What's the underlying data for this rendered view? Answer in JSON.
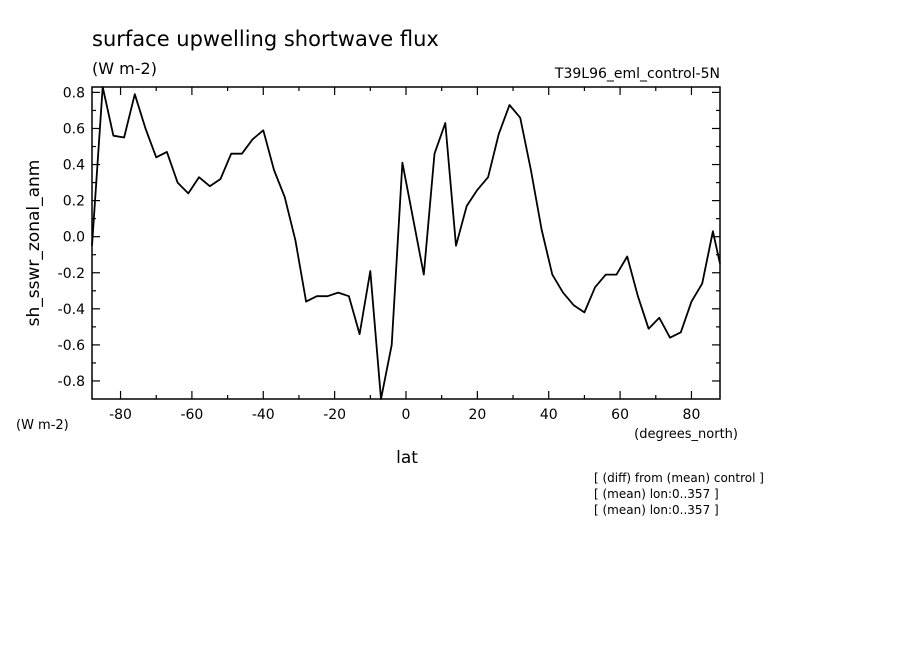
{
  "chart_data": {
    "type": "line",
    "title": "surface upwelling shortwave flux",
    "title_units": "(W m-2)",
    "run_label": "T39L96_eml_control-5N",
    "ylabel": "sh_sswr_zonal_anm",
    "ylabel_units": "(W m-2)",
    "xlabel": "lat",
    "xlabel_units": "(degrees_north)",
    "notes": [
      "[ (diff) from (mean) control ]",
      "[ (mean) lon:0..357 ]",
      "[ (mean) lon:0..357 ]"
    ],
    "xlim": [
      -88,
      88
    ],
    "ylim": [
      -0.9,
      0.83
    ],
    "xticks": [
      -80,
      -60,
      -40,
      -20,
      0,
      20,
      40,
      60,
      80
    ],
    "xtick_labels": [
      "-80",
      "-60",
      "-40",
      "-20",
      "0",
      "20",
      "40",
      "60",
      "80"
    ],
    "yticks": [
      0.8,
      0.6,
      0.4,
      0.2,
      0.0,
      -0.2,
      -0.4,
      -0.6,
      -0.8
    ],
    "ytick_labels": [
      "0.8",
      "0.6",
      "0.4",
      "0.2",
      "0.0",
      "-0.2",
      "-0.4",
      "-0.6",
      "-0.8"
    ],
    "grid": false,
    "line_color": "#000000",
    "series": [
      {
        "x": [
          -88,
          -85,
          -82,
          -79,
          -76,
          -73,
          -70,
          -67,
          -64,
          -61,
          -58,
          -55,
          -52,
          -49,
          -46,
          -43,
          -40,
          -37,
          -34,
          -31,
          -28,
          -25,
          -22,
          -19,
          -16,
          -13,
          -10,
          -7,
          -4,
          -1,
          2,
          5,
          8,
          11,
          14,
          17,
          20,
          23,
          26,
          29,
          32,
          35,
          38,
          41,
          44,
          47,
          50,
          53,
          56,
          59,
          62,
          65,
          68,
          71,
          74,
          77,
          80,
          83,
          86,
          88
        ],
        "y": [
          -0.05,
          0.83,
          0.56,
          0.55,
          0.79,
          0.6,
          0.44,
          0.47,
          0.3,
          0.24,
          0.33,
          0.28,
          0.32,
          0.46,
          0.46,
          0.54,
          0.59,
          0.37,
          0.22,
          -0.02,
          -0.36,
          -0.33,
          -0.33,
          -0.31,
          -0.33,
          -0.54,
          -0.19,
          -0.9,
          -0.6,
          0.41,
          0.1,
          -0.21,
          0.46,
          0.63,
          -0.05,
          0.17,
          0.26,
          0.33,
          0.57,
          0.73,
          0.66,
          0.37,
          0.04,
          -0.21,
          -0.31,
          -0.38,
          -0.42,
          -0.28,
          -0.21,
          -0.21,
          -0.11,
          -0.33,
          -0.51,
          -0.45,
          -0.56,
          -0.53,
          -0.36,
          -0.26,
          0.03,
          -0.15
        ]
      }
    ]
  }
}
